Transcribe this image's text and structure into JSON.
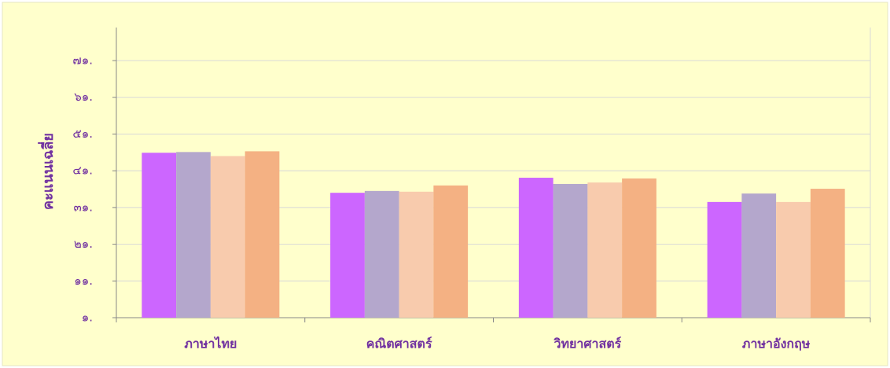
{
  "chart_data": {
    "type": "bar",
    "ylabel": "คะแนนเฉลี่ย",
    "categories": [
      "ภาษาไทย",
      "คณิตศาสตร์",
      "วิทยาศาสตร์",
      "ภาษาอังกฤษ"
    ],
    "series": [
      {
        "color": "#cc66ff",
        "values": [
          45.9,
          35.0,
          39.1,
          32.5
        ]
      },
      {
        "color": "#b4a7cc",
        "values": [
          46.1,
          35.5,
          37.4,
          34.8
        ]
      },
      {
        "color": "#f8cbad",
        "values": [
          45.0,
          35.3,
          37.8,
          32.5
        ]
      },
      {
        "color": "#f4b183",
        "values": [
          46.3,
          37.0,
          38.9,
          36.1
        ]
      }
    ],
    "ylim": [
      1,
      80
    ],
    "yticks": [
      {
        "value": 1,
        "label": "๑."
      },
      {
        "value": 11,
        "label": "๑๑."
      },
      {
        "value": 21,
        "label": "๒๑."
      },
      {
        "value": 31,
        "label": "๓๑."
      },
      {
        "value": 41,
        "label": "๔๑."
      },
      {
        "value": 51,
        "label": "๕๑."
      },
      {
        "value": 61,
        "label": "๖๑."
      },
      {
        "value": 71,
        "label": "๗๑."
      }
    ],
    "grid": true
  }
}
